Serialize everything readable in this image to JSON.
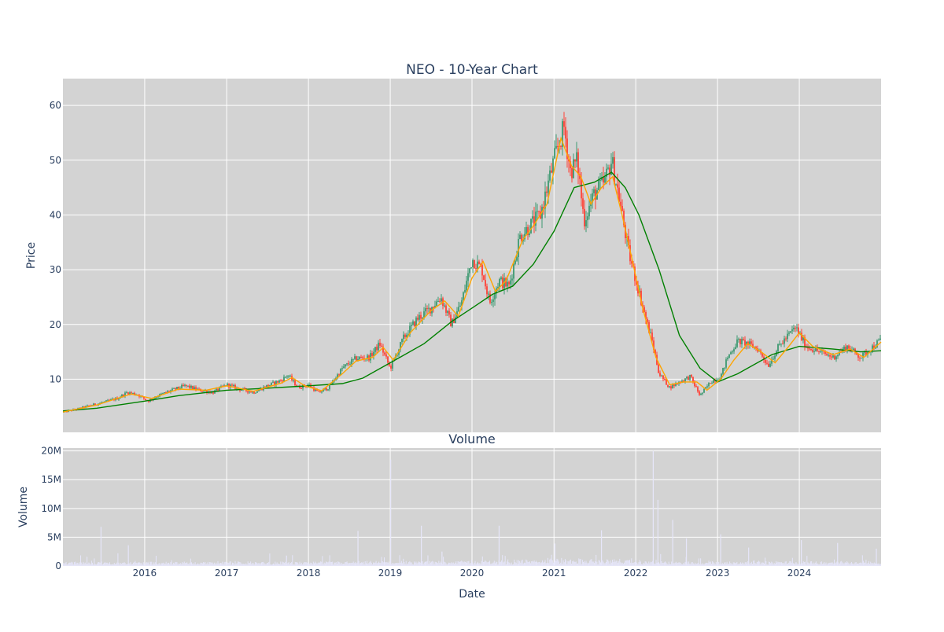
{
  "chart_data": [
    {
      "type": "candlestick",
      "title": "NEO - 10-Year Chart",
      "xlabel": "",
      "ylabel": "Price",
      "ylim": [
        0.3,
        64.9
      ],
      "xlim": [
        "2015-01-01",
        "2024-12-31"
      ],
      "yticks": [
        10,
        20,
        30,
        40,
        50,
        60
      ],
      "grid": true,
      "background": "#d3d3d3",
      "up_color": "#3d9970",
      "down_color": "#ff4136",
      "close_points": [
        [
          "2015-01-01",
          4.0
        ],
        [
          "2015-03-01",
          4.5
        ],
        [
          "2015-05-01",
          5.2
        ],
        [
          "2015-07-01",
          5.8
        ],
        [
          "2015-09-01",
          6.5
        ],
        [
          "2015-10-15",
          7.6
        ],
        [
          "2015-12-01",
          7.2
        ],
        [
          "2016-01-15",
          6.0
        ],
        [
          "2016-03-01",
          7.0
        ],
        [
          "2016-05-01",
          8.0
        ],
        [
          "2016-07-01",
          8.8
        ],
        [
          "2016-09-01",
          8.0
        ],
        [
          "2016-11-01",
          7.6
        ],
        [
          "2017-01-01",
          9.0
        ],
        [
          "2017-03-01",
          8.2
        ],
        [
          "2017-05-01",
          7.6
        ],
        [
          "2017-07-01",
          8.8
        ],
        [
          "2017-09-01",
          9.8
        ],
        [
          "2017-10-01",
          10.8
        ],
        [
          "2017-11-15",
          8.5
        ],
        [
          "2018-01-01",
          9.0
        ],
        [
          "2018-02-15",
          7.5
        ],
        [
          "2018-04-01",
          8.5
        ],
        [
          "2018-06-01",
          12.0
        ],
        [
          "2018-08-01",
          13.8
        ],
        [
          "2018-10-01",
          14.0
        ],
        [
          "2018-11-15",
          16.5
        ],
        [
          "2019-01-01",
          12.0
        ],
        [
          "2019-03-01",
          17.5
        ],
        [
          "2019-05-01",
          21.0
        ],
        [
          "2019-07-01",
          23.0
        ],
        [
          "2019-08-15",
          25.0
        ],
        [
          "2019-10-01",
          20.0
        ],
        [
          "2019-11-15",
          24.0
        ],
        [
          "2020-01-01",
          32.0
        ],
        [
          "2020-02-15",
          30.0
        ],
        [
          "2020-03-20",
          24.0
        ],
        [
          "2020-05-01",
          28.0
        ],
        [
          "2020-06-15",
          27.0
        ],
        [
          "2020-08-01",
          36.0
        ],
        [
          "2020-09-15",
          38.0
        ],
        [
          "2020-11-01",
          40.0
        ],
        [
          "2021-01-01",
          50.0
        ],
        [
          "2021-02-15",
          56.0
        ],
        [
          "2021-03-15",
          48.0
        ],
        [
          "2021-04-15",
          50.0
        ],
        [
          "2021-05-15",
          39.0
        ],
        [
          "2021-07-01",
          44.0
        ],
        [
          "2021-08-15",
          46.0
        ],
        [
          "2021-09-15",
          50.0
        ],
        [
          "2021-10-15",
          44.0
        ],
        [
          "2021-12-01",
          33.0
        ],
        [
          "2022-01-15",
          26.0
        ],
        [
          "2022-02-15",
          21.0
        ],
        [
          "2022-03-15",
          17.0
        ],
        [
          "2022-04-15",
          11.0
        ],
        [
          "2022-06-01",
          8.5
        ],
        [
          "2022-07-15",
          9.5
        ],
        [
          "2022-09-01",
          10.5
        ],
        [
          "2022-10-15",
          7.0
        ],
        [
          "2022-12-01",
          9.5
        ],
        [
          "2023-01-15",
          10.5
        ],
        [
          "2023-02-15",
          14.0
        ],
        [
          "2023-04-01",
          17.0
        ],
        [
          "2023-05-15",
          16.5
        ],
        [
          "2023-07-01",
          15.5
        ],
        [
          "2023-08-15",
          12.5
        ],
        [
          "2023-10-01",
          16.0
        ],
        [
          "2023-12-15",
          19.5
        ],
        [
          "2024-02-01",
          16.0
        ],
        [
          "2024-04-01",
          15.0
        ],
        [
          "2024-06-01",
          14.0
        ],
        [
          "2024-08-01",
          16.0
        ],
        [
          "2024-10-01",
          14.0
        ],
        [
          "2024-12-31",
          17.2
        ]
      ],
      "ma_fast_points": [
        [
          "2015-01-01",
          4.0
        ],
        [
          "2015-06-01",
          5.3
        ],
        [
          "2015-11-01",
          7.3
        ],
        [
          "2016-02-01",
          6.5
        ],
        [
          "2016-06-01",
          8.2
        ],
        [
          "2016-10-01",
          8.0
        ],
        [
          "2017-01-01",
          8.8
        ],
        [
          "2017-05-01",
          7.8
        ],
        [
          "2017-09-01",
          9.3
        ],
        [
          "2017-10-20",
          10.3
        ],
        [
          "2017-12-15",
          8.8
        ],
        [
          "2018-03-01",
          7.9
        ],
        [
          "2018-06-01",
          11.0
        ],
        [
          "2018-08-01",
          13.3
        ],
        [
          "2018-10-15",
          14.0
        ],
        [
          "2018-12-01",
          15.8
        ],
        [
          "2019-01-15",
          13.5
        ],
        [
          "2019-04-01",
          18.5
        ],
        [
          "2019-07-01",
          22.5
        ],
        [
          "2019-09-01",
          24.3
        ],
        [
          "2019-11-01",
          21.5
        ],
        [
          "2020-01-01",
          28.5
        ],
        [
          "2020-02-20",
          31.5
        ],
        [
          "2020-04-15",
          26.0
        ],
        [
          "2020-06-01",
          28.0
        ],
        [
          "2020-08-15",
          35.5
        ],
        [
          "2020-10-01",
          38.0
        ],
        [
          "2020-12-01",
          42.0
        ],
        [
          "2021-02-01",
          54.0
        ],
        [
          "2021-03-20",
          49.0
        ],
        [
          "2021-05-01",
          47.0
        ],
        [
          "2021-06-15",
          42.0
        ],
        [
          "2021-08-01",
          45.0
        ],
        [
          "2021-09-20",
          47.0
        ],
        [
          "2021-11-01",
          40.0
        ],
        [
          "2021-12-15",
          32.0
        ],
        [
          "2022-02-01",
          23.0
        ],
        [
          "2022-04-01",
          14.0
        ],
        [
          "2022-06-01",
          9.0
        ],
        [
          "2022-08-01",
          9.5
        ],
        [
          "2022-10-01",
          9.5
        ],
        [
          "2022-11-15",
          8.0
        ],
        [
          "2023-01-15",
          10.0
        ],
        [
          "2023-03-15",
          13.5
        ],
        [
          "2023-05-15",
          16.5
        ],
        [
          "2023-07-15",
          15.0
        ],
        [
          "2023-09-15",
          13.0
        ],
        [
          "2023-11-15",
          16.0
        ],
        [
          "2024-01-01",
          18.5
        ],
        [
          "2024-03-01",
          16.0
        ],
        [
          "2024-06-01",
          14.5
        ],
        [
          "2024-08-15",
          15.5
        ],
        [
          "2024-10-15",
          14.0
        ],
        [
          "2024-12-31",
          16.8
        ]
      ],
      "ma_slow_points": [
        [
          "2015-01-01",
          4.2
        ],
        [
          "2015-06-01",
          4.7
        ],
        [
          "2016-01-01",
          6.0
        ],
        [
          "2016-06-01",
          7.0
        ],
        [
          "2017-01-01",
          8.0
        ],
        [
          "2017-06-01",
          8.3
        ],
        [
          "2018-01-01",
          8.8
        ],
        [
          "2018-06-01",
          9.2
        ],
        [
          "2018-09-01",
          10.2
        ],
        [
          "2019-01-01",
          13.0
        ],
        [
          "2019-06-01",
          16.5
        ],
        [
          "2019-10-01",
          20.5
        ],
        [
          "2020-01-01",
          23.0
        ],
        [
          "2020-04-01",
          25.5
        ],
        [
          "2020-07-01",
          27.0
        ],
        [
          "2020-10-01",
          31.0
        ],
        [
          "2021-01-01",
          37.0
        ],
        [
          "2021-04-01",
          45.0
        ],
        [
          "2021-07-01",
          46.0
        ],
        [
          "2021-09-15",
          47.8
        ],
        [
          "2021-11-15",
          45.0
        ],
        [
          "2022-01-15",
          40.0
        ],
        [
          "2022-04-15",
          30.0
        ],
        [
          "2022-07-15",
          18.0
        ],
        [
          "2022-10-15",
          12.0
        ],
        [
          "2023-01-01",
          9.5
        ],
        [
          "2023-04-01",
          11.0
        ],
        [
          "2023-09-01",
          14.5
        ],
        [
          "2024-01-01",
          16.0
        ],
        [
          "2024-06-01",
          15.5
        ],
        [
          "2024-10-01",
          15.0
        ],
        [
          "2024-12-31",
          15.2
        ]
      ]
    },
    {
      "type": "bar",
      "title": "Volume",
      "xlabel": "Date",
      "ylabel": "Volume",
      "ylim": [
        0,
        20500000
      ],
      "yticks": [
        0,
        5000000,
        10000000,
        15000000,
        20000000
      ],
      "ytick_labels": [
        "0",
        "5M",
        "10M",
        "15M",
        "20M"
      ],
      "xticks": [
        "2016-01-01",
        "2017-01-01",
        "2018-01-01",
        "2019-01-01",
        "2020-01-01",
        "2021-01-01",
        "2022-01-01",
        "2023-01-01",
        "2024-01-01"
      ],
      "xtick_labels": [
        "2016",
        "2017",
        "2018",
        "2019",
        "2020",
        "2021",
        "2022",
        "2023",
        "2024"
      ],
      "grid": true,
      "background": "#d3d3d3",
      "bar_color": "#e6e6fa",
      "spikes": [
        [
          "2015-06-20",
          6800000
        ],
        [
          "2015-10-20",
          3600000
        ],
        [
          "2017-09-25",
          1800000
        ],
        [
          "2018-08-10",
          6100000
        ],
        [
          "2019-01-03",
          18500000
        ],
        [
          "2019-05-20",
          7000000
        ],
        [
          "2019-08-20",
          2500000
        ],
        [
          "2020-05-01",
          7000000
        ],
        [
          "2021-01-05",
          3900000
        ],
        [
          "2021-08-01",
          6200000
        ],
        [
          "2022-03-20",
          20000000
        ],
        [
          "2022-04-10",
          11500000
        ],
        [
          "2022-06-15",
          8000000
        ],
        [
          "2022-08-15",
          4800000
        ],
        [
          "2023-01-15",
          5500000
        ],
        [
          "2023-05-20",
          3200000
        ],
        [
          "2024-01-10",
          4500000
        ],
        [
          "2024-06-20",
          4000000
        ],
        [
          "2024-12-10",
          3000000
        ]
      ]
    }
  ]
}
